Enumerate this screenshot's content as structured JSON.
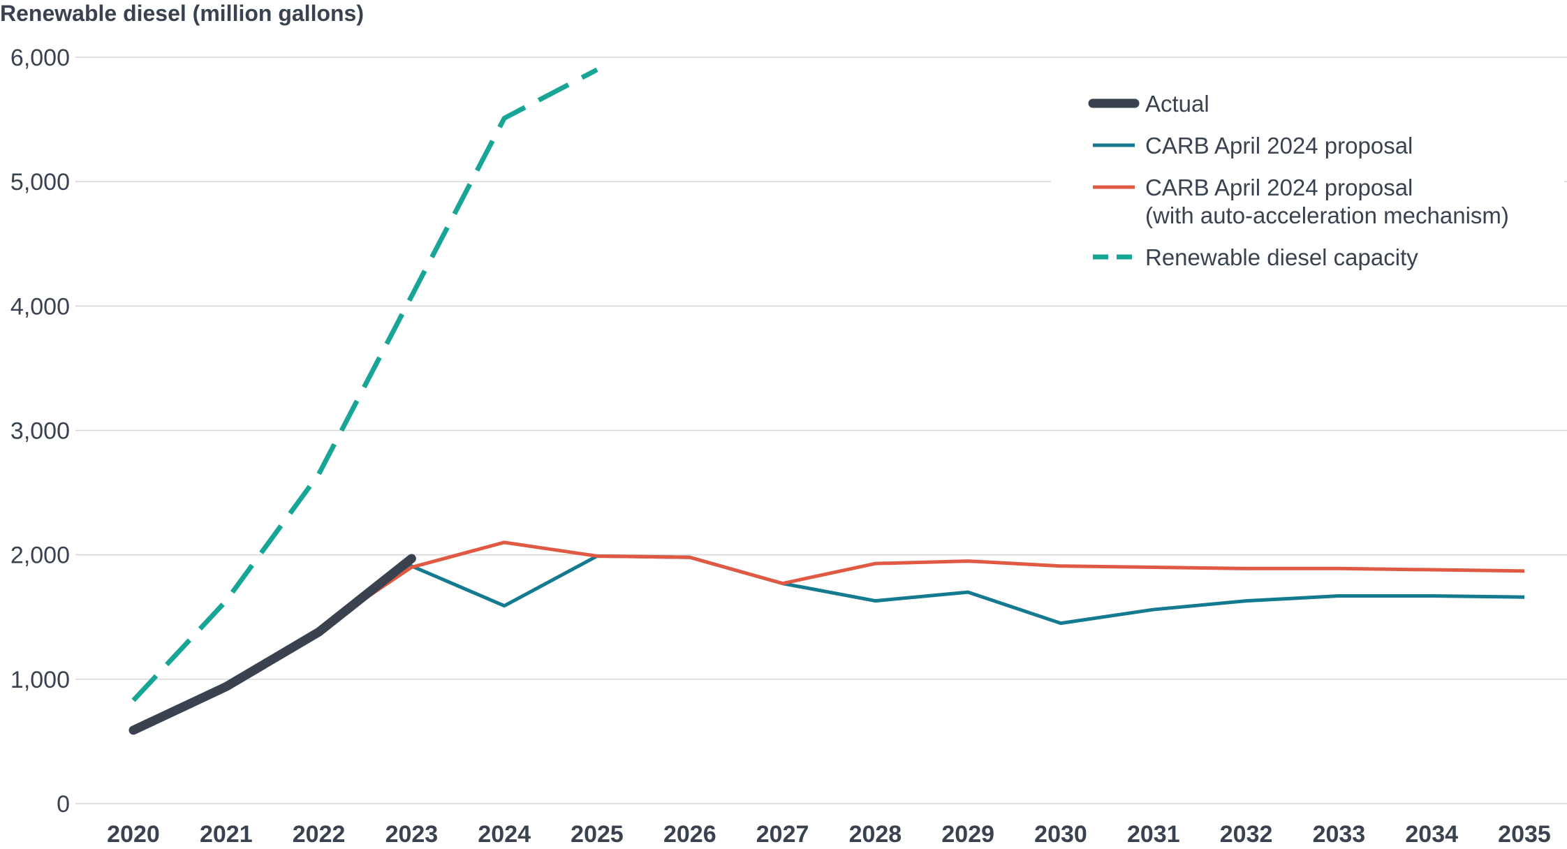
{
  "chart_data": {
    "type": "line",
    "title": "",
    "ylabel": "Renewable diesel (million gallons)",
    "xlabel": "",
    "x": [
      2020,
      2021,
      2022,
      2023,
      2024,
      2025,
      2026,
      2027,
      2028,
      2029,
      2030,
      2031,
      2032,
      2033,
      2034,
      2035
    ],
    "ylim": [
      0,
      6000
    ],
    "yticks": [
      0,
      1000,
      2000,
      3000,
      4000,
      5000,
      6000
    ],
    "ytick_labels": [
      "0",
      "1,000",
      "2,000",
      "3,000",
      "4,000",
      "5,000",
      "6,000"
    ],
    "grid": true,
    "legend_position": "top-right",
    "series": [
      {
        "name": "Actual",
        "color": "#3a4250",
        "style": "solid-thick",
        "x": [
          2020,
          2021,
          2022,
          2023
        ],
        "values": [
          590,
          940,
          1380,
          1970
        ]
      },
      {
        "name": "CARB April 2024 proposal",
        "color": "#137a8f",
        "style": "solid",
        "x": [
          2022,
          2023,
          2024,
          2025,
          2026,
          2027,
          2028,
          2029,
          2030,
          2031,
          2032,
          2033,
          2034,
          2035
        ],
        "values": [
          1390,
          1910,
          1590,
          1990,
          1980,
          1770,
          1630,
          1700,
          1450,
          1560,
          1630,
          1670,
          1670,
          1660
        ]
      },
      {
        "name": "CARB April 2024 proposal (with auto-acceleration mechanism)",
        "legend_lines": [
          "CARB April 2024 proposal",
          "(with auto-acceleration mechanism)"
        ],
        "color": "#e05a43",
        "style": "solid",
        "x": [
          2022,
          2023,
          2024,
          2025,
          2026,
          2027,
          2028,
          2029,
          2030,
          2031,
          2032,
          2033,
          2034,
          2035
        ],
        "values": [
          1400,
          1900,
          2100,
          1990,
          1980,
          1770,
          1930,
          1950,
          1910,
          1900,
          1890,
          1890,
          1880,
          1870
        ]
      },
      {
        "name": "Renewable diesel capacity",
        "color": "#17a595",
        "style": "dashed",
        "x": [
          2020,
          2021,
          2022,
          2023,
          2024,
          2025
        ],
        "values": [
          830,
          1630,
          2650,
          4080,
          5510,
          5900
        ]
      }
    ]
  }
}
